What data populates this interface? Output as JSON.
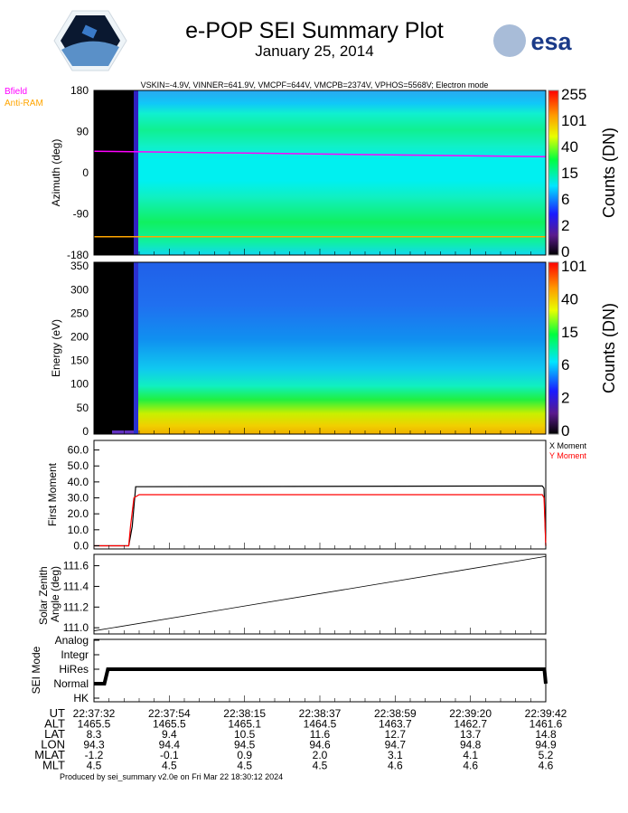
{
  "header": {
    "title": "e-POP SEI Summary Plot",
    "date": "January 25, 2014",
    "logo_left": "CASSIOPE",
    "logo_right": "esa",
    "settings": "VSKIN=-4.9V, VINNER=641.9V, VMCPF=644V, VMCPB=2374V, VPHOS=5568V; Electron mode"
  },
  "colors": {
    "bfield": "#ff00ff",
    "antiram": "#ffa500",
    "x_moment": "#000000",
    "y_moment": "#ff0000"
  },
  "chart_data": [
    {
      "type": "heatmap",
      "ylabel": "Azimuth (deg)",
      "ylim": [
        -180,
        180
      ],
      "yticks": [
        "180",
        "90",
        "0",
        "-90",
        "-180"
      ],
      "colorbar": {
        "label": "Counts (DN)",
        "ticks": [
          "255",
          "101",
          "40",
          "15",
          "6",
          "2",
          "0"
        ]
      },
      "legend": [
        "Bfield",
        "Anti-RAM"
      ],
      "bfield_azimuth": {
        "t": [
          0,
          130
        ],
        "values": [
          47,
          35
        ]
      },
      "antiram_azimuth": {
        "t": [
          0,
          130
        ],
        "values": [
          -140,
          -140
        ]
      }
    },
    {
      "type": "heatmap",
      "ylabel": "Energy (eV)",
      "ylim": [
        0,
        350
      ],
      "yticks": [
        "350",
        "300",
        "250",
        "200",
        "150",
        "100",
        "50",
        "0"
      ],
      "colorbar": {
        "label": "Counts (DN)",
        "ticks": [
          "101",
          "40",
          "15",
          "6",
          "2",
          "0"
        ]
      }
    },
    {
      "type": "line",
      "ylabel": "First Moment",
      "ylim": [
        -2,
        66
      ],
      "yticks": [
        "60.0",
        "50.0",
        "40.0",
        "30.0",
        "20.0",
        "10.0",
        "0.0"
      ],
      "legend": [
        "X Moment",
        "Y Moment"
      ],
      "series": [
        {
          "name": "X Moment",
          "t": [
            0,
            10,
            11,
            12,
            129,
            129.5,
            130
          ],
          "values": [
            0,
            0,
            12,
            37,
            37.5,
            36,
            0
          ]
        },
        {
          "name": "Y Moment",
          "t": [
            0,
            10,
            10.5,
            11.5,
            13,
            129,
            129.5,
            130
          ],
          "values": [
            0,
            0,
            12,
            30,
            32,
            32,
            30,
            0
          ]
        }
      ]
    },
    {
      "type": "line",
      "ylabel": "Solar Zenith Angle (deg)",
      "ylim": [
        110.94,
        111.71
      ],
      "yticks": [
        "111.6",
        "111.4",
        "111.2",
        "111.0"
      ],
      "series": [
        {
          "name": "SZA",
          "t": [
            0,
            130
          ],
          "values": [
            110.97,
            111.69
          ]
        }
      ]
    },
    {
      "type": "line",
      "ylabel": "SEI Mode",
      "yticks": [
        "Analog",
        "Integr",
        "HiRes",
        "Normal",
        "HK"
      ],
      "series": [
        {
          "name": "Mode",
          "t": [
            0,
            3,
            4,
            129.6,
            130
          ],
          "values": [
            1,
            1,
            2,
            2,
            1
          ]
        }
      ]
    }
  ],
  "xaxis": {
    "rows": [
      {
        "label": "UT",
        "values": [
          "22:37:32",
          "22:37:54",
          "22:38:15",
          "22:38:37",
          "22:38:59",
          "22:39:20",
          "22:39:42"
        ]
      },
      {
        "label": "ALT",
        "values": [
          "1465.5",
          "1465.5",
          "1465.1",
          "1464.5",
          "1463.7",
          "1462.7",
          "1461.6"
        ]
      },
      {
        "label": "LAT",
        "values": [
          "8.3",
          "9.4",
          "10.5",
          "11.6",
          "12.7",
          "13.7",
          "14.8"
        ]
      },
      {
        "label": "LON",
        "values": [
          "94.3",
          "94.4",
          "94.5",
          "94.6",
          "94.7",
          "94.8",
          "94.9"
        ]
      },
      {
        "label": "MLAT",
        "values": [
          "-1.2",
          "-0.1",
          "0.9",
          "2.0",
          "3.1",
          "4.1",
          "5.2"
        ]
      },
      {
        "label": "MLT",
        "values": [
          "4.5",
          "4.5",
          "4.5",
          "4.5",
          "4.6",
          "4.6",
          "4.6"
        ]
      }
    ]
  },
  "footer": "Produced by sei_summary v2.0e on Fri Mar 22 18:30:12 2024"
}
